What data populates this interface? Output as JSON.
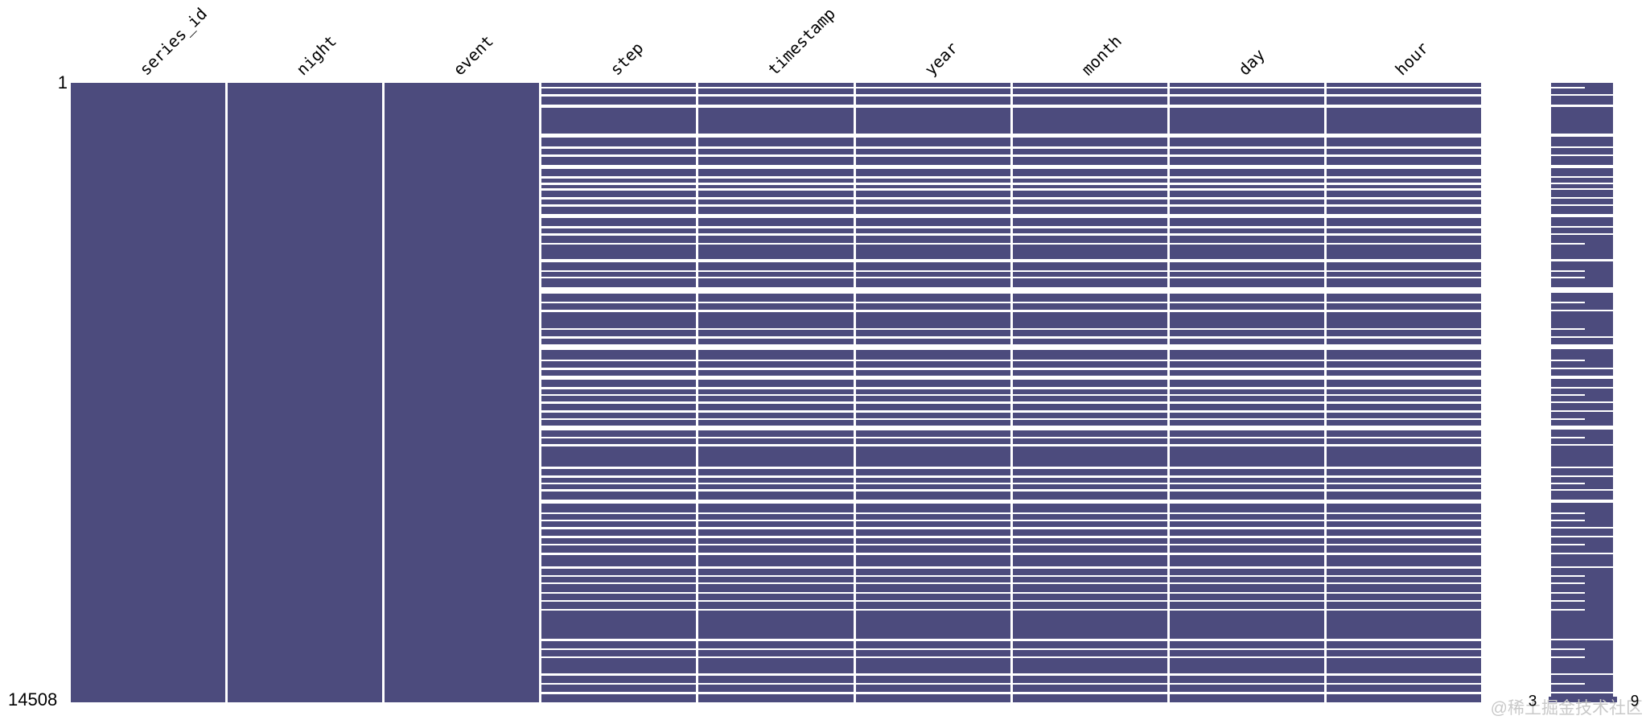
{
  "figure": {
    "watermark": "@稀土掘金技术社区"
  },
  "chart_data": {
    "type": "matrix",
    "variant": "missingno-nullity-matrix",
    "title": "",
    "columns": [
      "series_id",
      "night",
      "event",
      "step",
      "timestamp",
      "year",
      "month",
      "day",
      "hour"
    ],
    "columns_fully_observed": [
      "series_id",
      "night",
      "event"
    ],
    "columns_with_missing": [
      "step",
      "timestamp",
      "year",
      "month",
      "day",
      "hour"
    ],
    "n_rows": 14508,
    "row_axis": {
      "first_row_label": "1",
      "last_row_label": "14508"
    },
    "sparkline": {
      "meaning": "non-null values per row",
      "min_value": 3,
      "max_value": 9,
      "tick_labels": [
        "3",
        "9"
      ]
    },
    "colors": {
      "data": "#4c4b7d",
      "background": "#ffffff",
      "text": "#000000",
      "watermark": "#c9c9c9"
    },
    "missing_row_ranges": [
      [
        94,
        132
      ],
      [
        264,
        321
      ],
      [
        509,
        584
      ],
      [
        1187,
        1281
      ],
      [
        1488,
        1545
      ],
      [
        1677,
        1734
      ],
      [
        1922,
        2016
      ],
      [
        2185,
        2242
      ],
      [
        2336,
        2393
      ],
      [
        2468,
        2525
      ],
      [
        2675,
        2732
      ],
      [
        2845,
        2902
      ],
      [
        3071,
        3165
      ],
      [
        3354,
        3411
      ],
      [
        3523,
        3580
      ],
      [
        3749,
        3787
      ],
      [
        4126,
        4201
      ],
      [
        4390,
        4428
      ],
      [
        4540,
        4578
      ],
      [
        4785,
        4936
      ],
      [
        5124,
        5162
      ],
      [
        5313,
        5370
      ],
      [
        5746,
        5784
      ],
      [
        5935,
        5992
      ],
      [
        6123,
        6255
      ],
      [
        6481,
        6519
      ],
      [
        6669,
        6726
      ],
      [
        6858,
        6952
      ],
      [
        7122,
        7179
      ],
      [
        7291,
        7329
      ],
      [
        7461,
        7518
      ],
      [
        7668,
        7725
      ],
      [
        7856,
        7894
      ],
      [
        8026,
        8139
      ],
      [
        8290,
        8328
      ],
      [
        8459,
        8516
      ],
      [
        8987,
        9044
      ],
      [
        9194,
        9251
      ],
      [
        9364,
        9402
      ],
      [
        9514,
        9571
      ],
      [
        9759,
        9853
      ],
      [
        10061,
        10099
      ],
      [
        10230,
        10268
      ],
      [
        10400,
        10457
      ],
      [
        10607,
        10664
      ],
      [
        10795,
        10833
      ],
      [
        11003,
        11060
      ],
      [
        11323,
        11380
      ],
      [
        11530,
        11568
      ],
      [
        11700,
        11738
      ],
      [
        11926,
        11964
      ],
      [
        12114,
        12152
      ],
      [
        12321,
        12359
      ],
      [
        13018,
        13075
      ],
      [
        13244,
        13282
      ],
      [
        13433,
        13471
      ],
      [
        13828,
        13885
      ],
      [
        14054,
        14092
      ],
      [
        14262,
        14319
      ]
    ]
  }
}
